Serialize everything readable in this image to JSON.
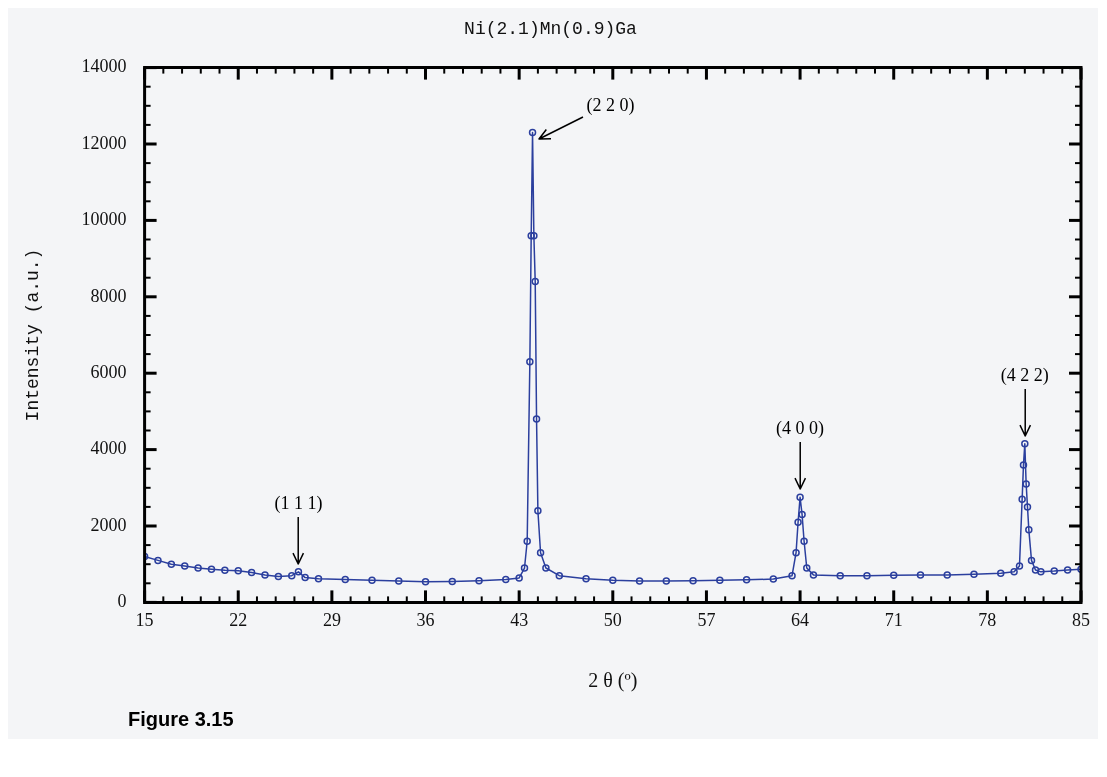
{
  "chart_data": {
    "type": "line",
    "title": "Ni(2.1)Mn(0.9)Ga",
    "xlabel": "2 θ (º)",
    "ylabel": "Intensity (a.u.)",
    "x": [
      15,
      16,
      17,
      18,
      19,
      20,
      21,
      22,
      23,
      24,
      25,
      26,
      26.5,
      27,
      28,
      30,
      32,
      34,
      36,
      38,
      40,
      42,
      43,
      43.4,
      43.6,
      43.8,
      43.9,
      44,
      44.1,
      44.2,
      44.3,
      44.4,
      44.6,
      45,
      46,
      48,
      50,
      52,
      54,
      56,
      58,
      60,
      62,
      63.4,
      63.7,
      63.85,
      64,
      64.15,
      64.3,
      64.5,
      65,
      67,
      69,
      71,
      73,
      75,
      77,
      79,
      80,
      80.4,
      80.6,
      80.7,
      80.8,
      80.9,
      81,
      81.1,
      81.3,
      81.6,
      82,
      83,
      84,
      85
    ],
    "series": [
      {
        "color": "#2b3f9e",
        "values": [
          1200,
          1100,
          1000,
          950,
          900,
          870,
          840,
          830,
          780,
          720,
          680,
          700,
          800,
          650,
          620,
          600,
          580,
          560,
          540,
          550,
          570,
          600,
          640,
          900,
          1600,
          6300,
          9600,
          12300,
          9600,
          8400,
          4800,
          2400,
          1300,
          900,
          700,
          620,
          580,
          560,
          560,
          570,
          580,
          590,
          610,
          700,
          1300,
          2100,
          2750,
          2300,
          1600,
          900,
          720,
          700,
          700,
          710,
          720,
          720,
          740,
          760,
          800,
          950,
          2700,
          3600,
          4150,
          3100,
          2500,
          1900,
          1100,
          850,
          800,
          820,
          850,
          870
        ]
      }
    ],
    "xlim": [
      15,
      85
    ],
    "xticks": [
      15,
      22,
      29,
      36,
      43,
      50,
      57,
      64,
      71,
      78,
      85
    ],
    "ylim": [
      0,
      14000
    ],
    "yticks": [
      0,
      2000,
      4000,
      6000,
      8000,
      10000,
      12000,
      14000
    ],
    "grid": false,
    "legend": false,
    "marker": "circle",
    "line_style": "solid",
    "annotations": [
      {
        "text": "(1 1 1)",
        "x": 26.5,
        "y": 800
      },
      {
        "text": "(2 2 0)",
        "x": 44,
        "y": 12300
      },
      {
        "text": "(4 0 0)",
        "x": 64,
        "y": 2750
      },
      {
        "text": "(4 2 2)",
        "x": 80.8,
        "y": 4150
      },
      "Figure 3.15"
    ]
  }
}
